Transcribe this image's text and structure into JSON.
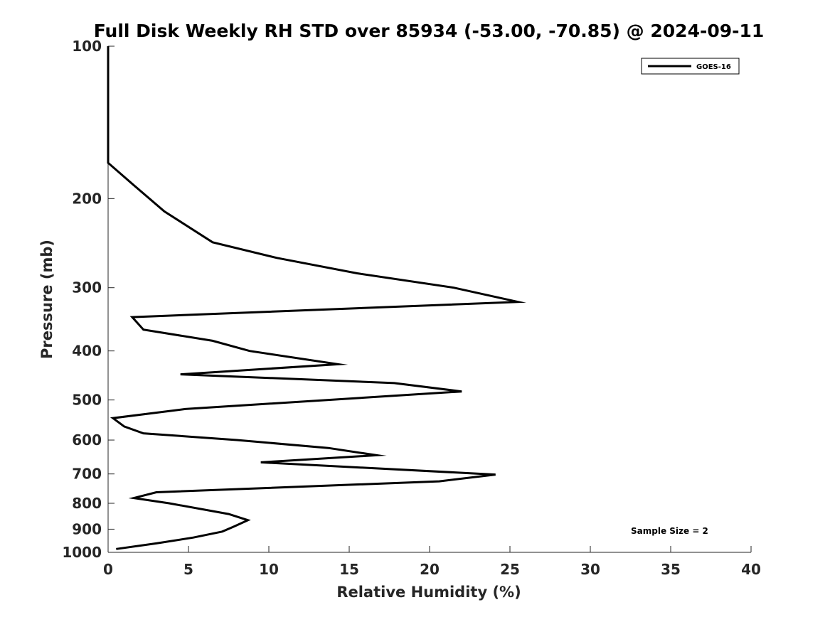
{
  "chart_data": {
    "type": "line",
    "title": "Full Disk Weekly RH STD over 85934 (-53.00, -70.85) @ 2024-09-11",
    "xlabel": "Relative Humidity (%)",
    "ylabel": "Pressure (mb)",
    "xlim": [
      0,
      40
    ],
    "ylim": [
      100,
      1000
    ],
    "y_scale": "log",
    "y_reversed": true,
    "xticks": [
      0,
      5,
      10,
      15,
      20,
      25,
      30,
      35,
      40
    ],
    "xtick_labels": [
      "0",
      "5",
      "10",
      "15",
      "20",
      "25",
      "30",
      "35",
      "40"
    ],
    "yticks": [
      100,
      200,
      300,
      400,
      500,
      600,
      700,
      800,
      900,
      1000
    ],
    "ytick_labels": [
      "100",
      "200",
      "300",
      "400",
      "500",
      "600",
      "700",
      "800",
      "900",
      "1000"
    ],
    "grid": false,
    "legend": {
      "position": "top-right",
      "entries": [
        "GOES-16"
      ]
    },
    "annotation": "Sample Size = 2",
    "series": [
      {
        "name": "GOES-16",
        "color": "#000000",
        "points": [
          {
            "rh": 0.0,
            "p": 100
          },
          {
            "rh": 0.0,
            "p": 170
          },
          {
            "rh": 1.5,
            "p": 187
          },
          {
            "rh": 3.5,
            "p": 212
          },
          {
            "rh": 6.5,
            "p": 244
          },
          {
            "rh": 10.5,
            "p": 262
          },
          {
            "rh": 15.5,
            "p": 281
          },
          {
            "rh": 21.5,
            "p": 300
          },
          {
            "rh": 25.5,
            "p": 320
          },
          {
            "rh": 1.5,
            "p": 343
          },
          {
            "rh": 2.2,
            "p": 363
          },
          {
            "rh": 6.5,
            "p": 382
          },
          {
            "rh": 8.8,
            "p": 400
          },
          {
            "rh": 14.3,
            "p": 425
          },
          {
            "rh": 4.5,
            "p": 445
          },
          {
            "rh": 17.8,
            "p": 463
          },
          {
            "rh": 22.0,
            "p": 481
          },
          {
            "rh": 4.8,
            "p": 521
          },
          {
            "rh": 0.3,
            "p": 543
          },
          {
            "rh": 1.0,
            "p": 564
          },
          {
            "rh": 2.2,
            "p": 582
          },
          {
            "rh": 8.0,
            "p": 600
          },
          {
            "rh": 13.7,
            "p": 622
          },
          {
            "rh": 16.7,
            "p": 643
          },
          {
            "rh": 9.5,
            "p": 664
          },
          {
            "rh": 24.1,
            "p": 702
          },
          {
            "rh": 20.6,
            "p": 724
          },
          {
            "rh": 3.0,
            "p": 761
          },
          {
            "rh": 1.6,
            "p": 781
          },
          {
            "rh": 3.8,
            "p": 800
          },
          {
            "rh": 7.5,
            "p": 840
          },
          {
            "rh": 8.7,
            "p": 864
          },
          {
            "rh": 7.8,
            "p": 890
          },
          {
            "rh": 7.1,
            "p": 910
          },
          {
            "rh": 5.3,
            "p": 935
          },
          {
            "rh": 3.0,
            "p": 960
          },
          {
            "rh": 0.5,
            "p": 985
          }
        ]
      }
    ]
  }
}
